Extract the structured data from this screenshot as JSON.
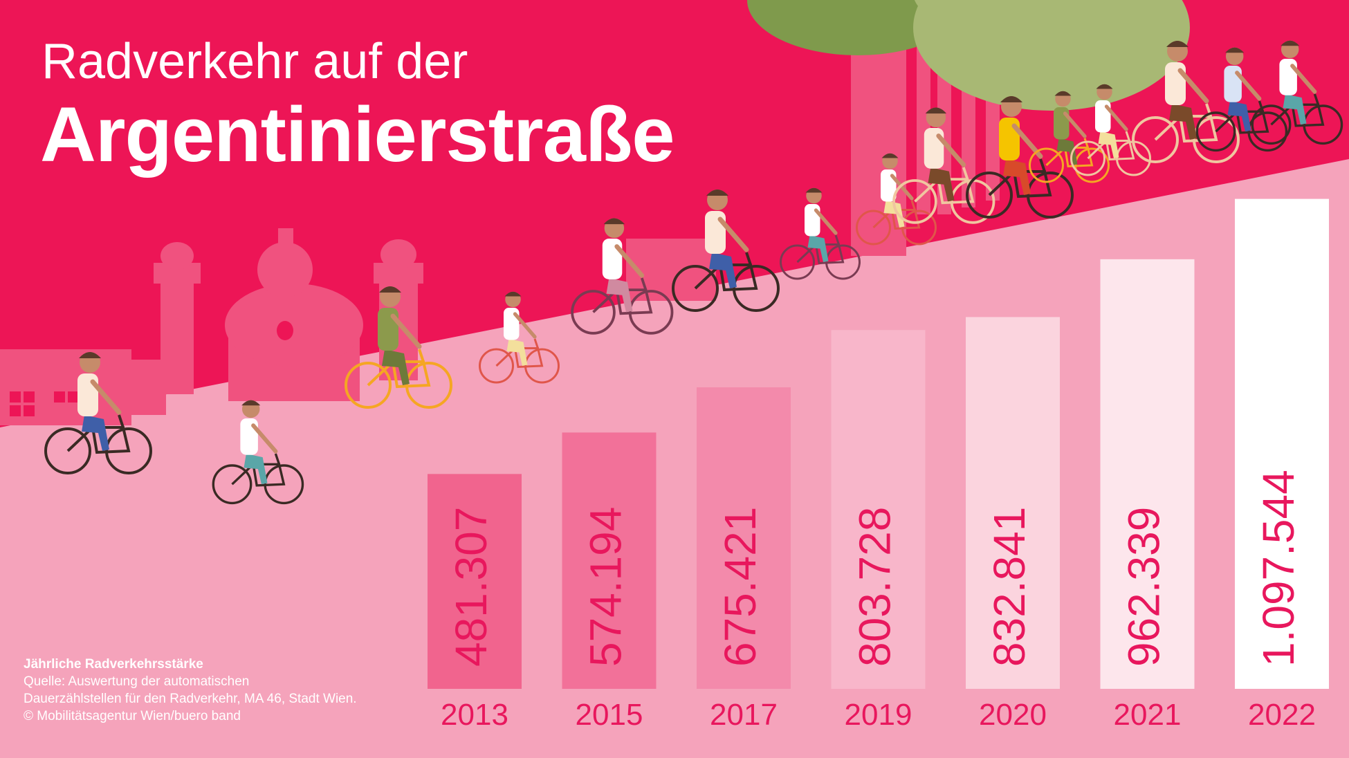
{
  "title": {
    "line1": "Radverkehr auf der",
    "line2": "Argentinierstraße"
  },
  "colors": {
    "sky": "#ed1556",
    "ground": "#f5a3bb",
    "silhouette": "#f0527f",
    "text_accent": "#e8175d",
    "bar_colors": [
      "#f1648e",
      "#f27199",
      "#f38aab",
      "#f8b6ca",
      "#fbd4de",
      "#fde6ec",
      "#ffffff"
    ]
  },
  "chart_data": {
    "type": "bar",
    "categories": [
      "2013",
      "2015",
      "2017",
      "2019",
      "2020",
      "2021",
      "2022"
    ],
    "values": [
      481307,
      574194,
      675421,
      803728,
      832841,
      962339,
      1097544
    ],
    "value_labels": [
      "481.307",
      "574.194",
      "675.421",
      "803.728",
      "832.841",
      "962.339",
      "1.097.544"
    ],
    "title": "",
    "xlabel": "",
    "ylabel": "",
    "ylim": [
      0,
      1100000
    ],
    "grid": false
  },
  "source": {
    "heading": "Jährliche Radverkehrsstärke",
    "line1": "Quelle: Auswertung der automatischen",
    "line2": "Dauerzählstellen für den Radverkehr, MA 46, Stadt Wien.",
    "line3": "© Mobilitätsagentur Wien/buero band"
  },
  "icons": [
    "tree-icon",
    "church-silhouette-icon",
    "cyclist-icon"
  ]
}
